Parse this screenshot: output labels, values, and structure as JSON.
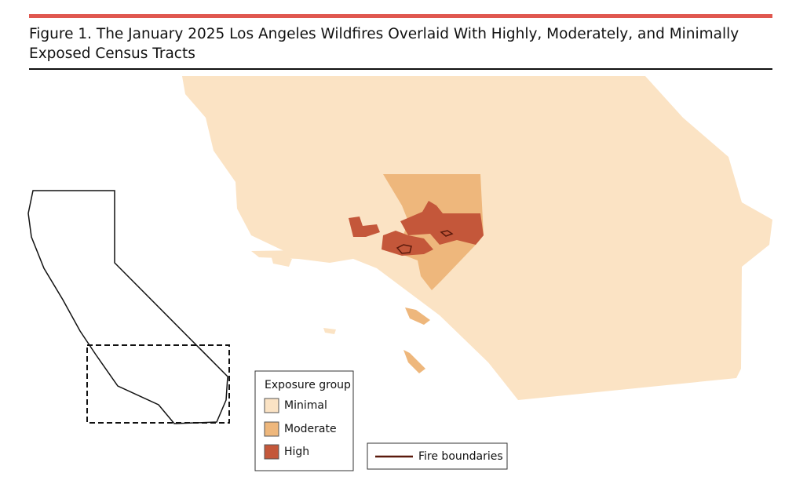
{
  "figure": {
    "title": "Figure 1. The January 2025 Los Angeles Wildfires Overlaid With Highly, Moderately, and Minimally Exposed Census Tracts"
  },
  "legend": {
    "title": "Exposure group",
    "items": [
      {
        "label": "Minimal",
        "color": "#fbe3c4"
      },
      {
        "label": "Moderate",
        "color": "#eeb77c"
      },
      {
        "label": "High",
        "color": "#c4573a"
      }
    ]
  },
  "fire_legend": {
    "label": "Fire boundaries",
    "color": "#5a1a0c"
  }
}
